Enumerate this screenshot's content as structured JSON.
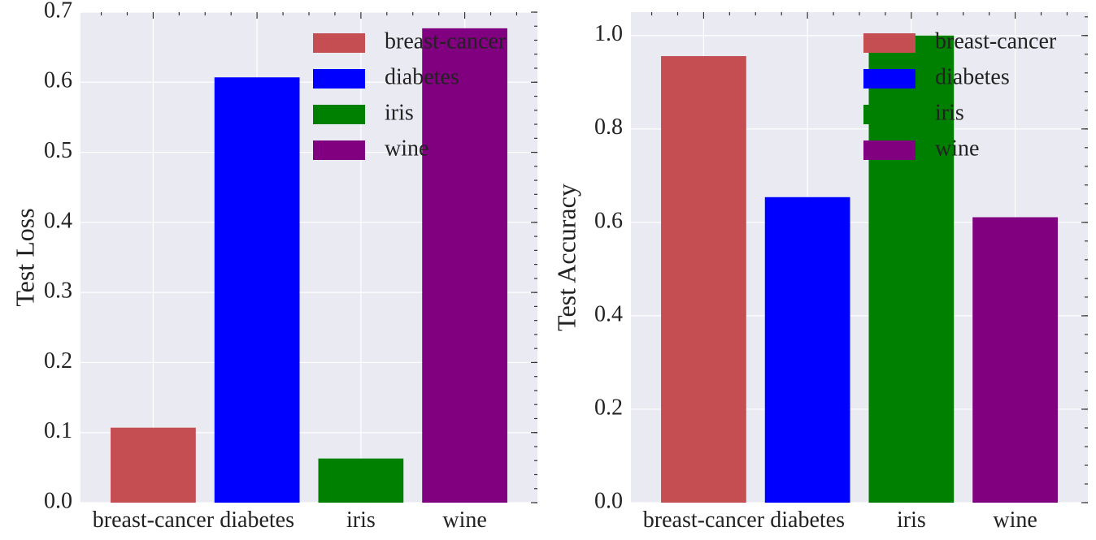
{
  "chart_data": [
    {
      "type": "bar",
      "categories": [
        "breast-cancer",
        "diabetes",
        "iris",
        "wine"
      ],
      "values": [
        0.107,
        0.607,
        0.063,
        0.677
      ],
      "colors": [
        "#c44e52",
        "#0000ff",
        "#008000",
        "#800080"
      ],
      "xlabel": "",
      "ylabel": "Test Loss",
      "ylim": [
        0,
        0.7
      ],
      "yticks": [
        "0.0",
        "0.1",
        "0.2",
        "0.3",
        "0.4",
        "0.5",
        "0.6",
        "0.7"
      ],
      "grid": true,
      "legend": {
        "placement": "top-right",
        "entries": [
          "breast-cancer",
          "diabetes",
          "iris",
          "wine"
        ]
      }
    },
    {
      "type": "bar",
      "categories": [
        "breast-cancer",
        "diabetes",
        "iris",
        "wine"
      ],
      "values": [
        0.956,
        0.654,
        1.0,
        0.611
      ],
      "colors": [
        "#c44e52",
        "#0000ff",
        "#008000",
        "#800080"
      ],
      "xlabel": "",
      "ylabel": "Test Accuracy",
      "ylim": [
        0,
        1.05
      ],
      "yticks": [
        "0.0",
        "0.2",
        "0.4",
        "0.6",
        "0.8",
        "1.0"
      ],
      "grid": true,
      "legend": {
        "placement": "top-right",
        "entries": [
          "breast-cancer",
          "diabetes",
          "iris",
          "wine"
        ]
      }
    }
  ]
}
